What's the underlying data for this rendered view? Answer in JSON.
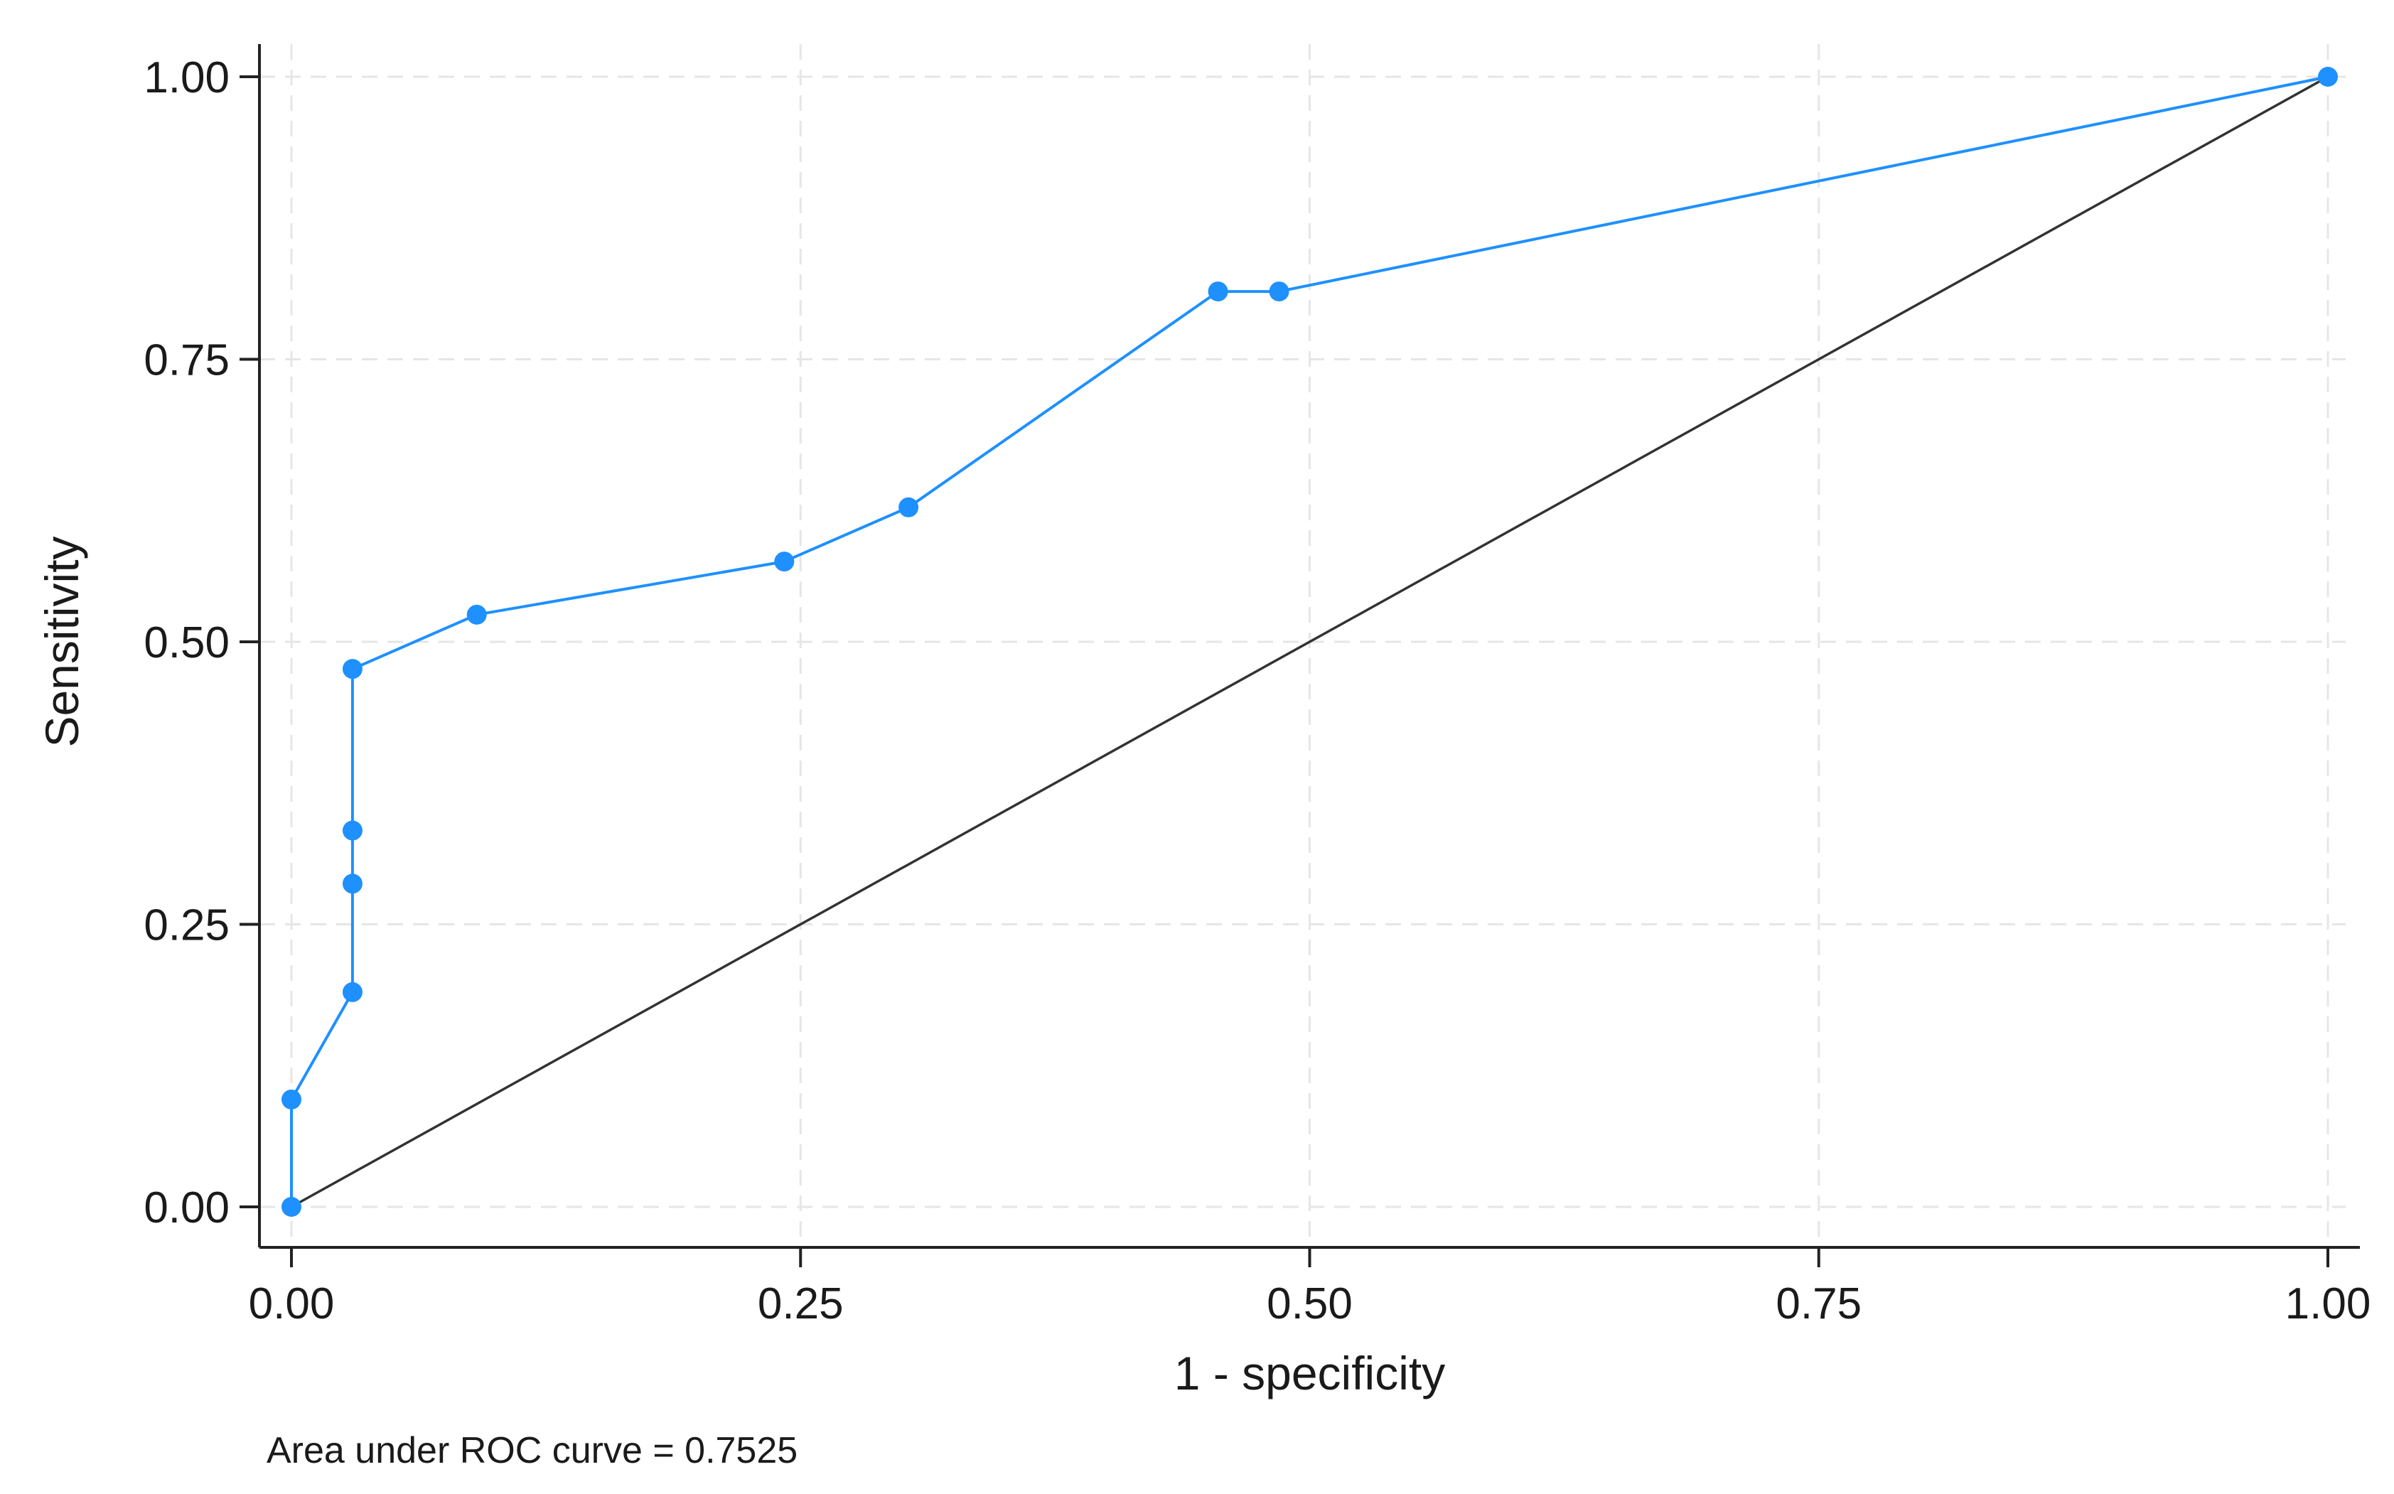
{
  "chart_data": {
    "type": "line",
    "xlabel": "1 - specificity",
    "ylabel": "Sensitivity",
    "xlim": [
      0,
      1
    ],
    "ylim": [
      0,
      1
    ],
    "x_ticks": [
      "0.00",
      "0.25",
      "0.50",
      "0.75",
      "1.00"
    ],
    "y_ticks": [
      "0.00",
      "0.25",
      "0.50",
      "0.75",
      "1.00"
    ],
    "grid": true,
    "grid_style": "dashed",
    "note": "Area under ROC curve = 0.7525",
    "series": [
      {
        "color": "#1e90ff",
        "markers": true,
        "x": [
          0.0,
          0.0,
          0.03,
          0.03,
          0.03,
          0.03,
          0.091,
          0.242,
          0.303,
          0.455,
          0.485,
          1.0
        ],
        "y": [
          0.0,
          0.095,
          0.19,
          0.286,
          0.333,
          0.476,
          0.524,
          0.571,
          0.619,
          0.81,
          0.81,
          1.0
        ]
      },
      {
        "color": "#333333",
        "markers": false,
        "x": [
          0,
          1
        ],
        "y": [
          0,
          1
        ]
      }
    ]
  }
}
